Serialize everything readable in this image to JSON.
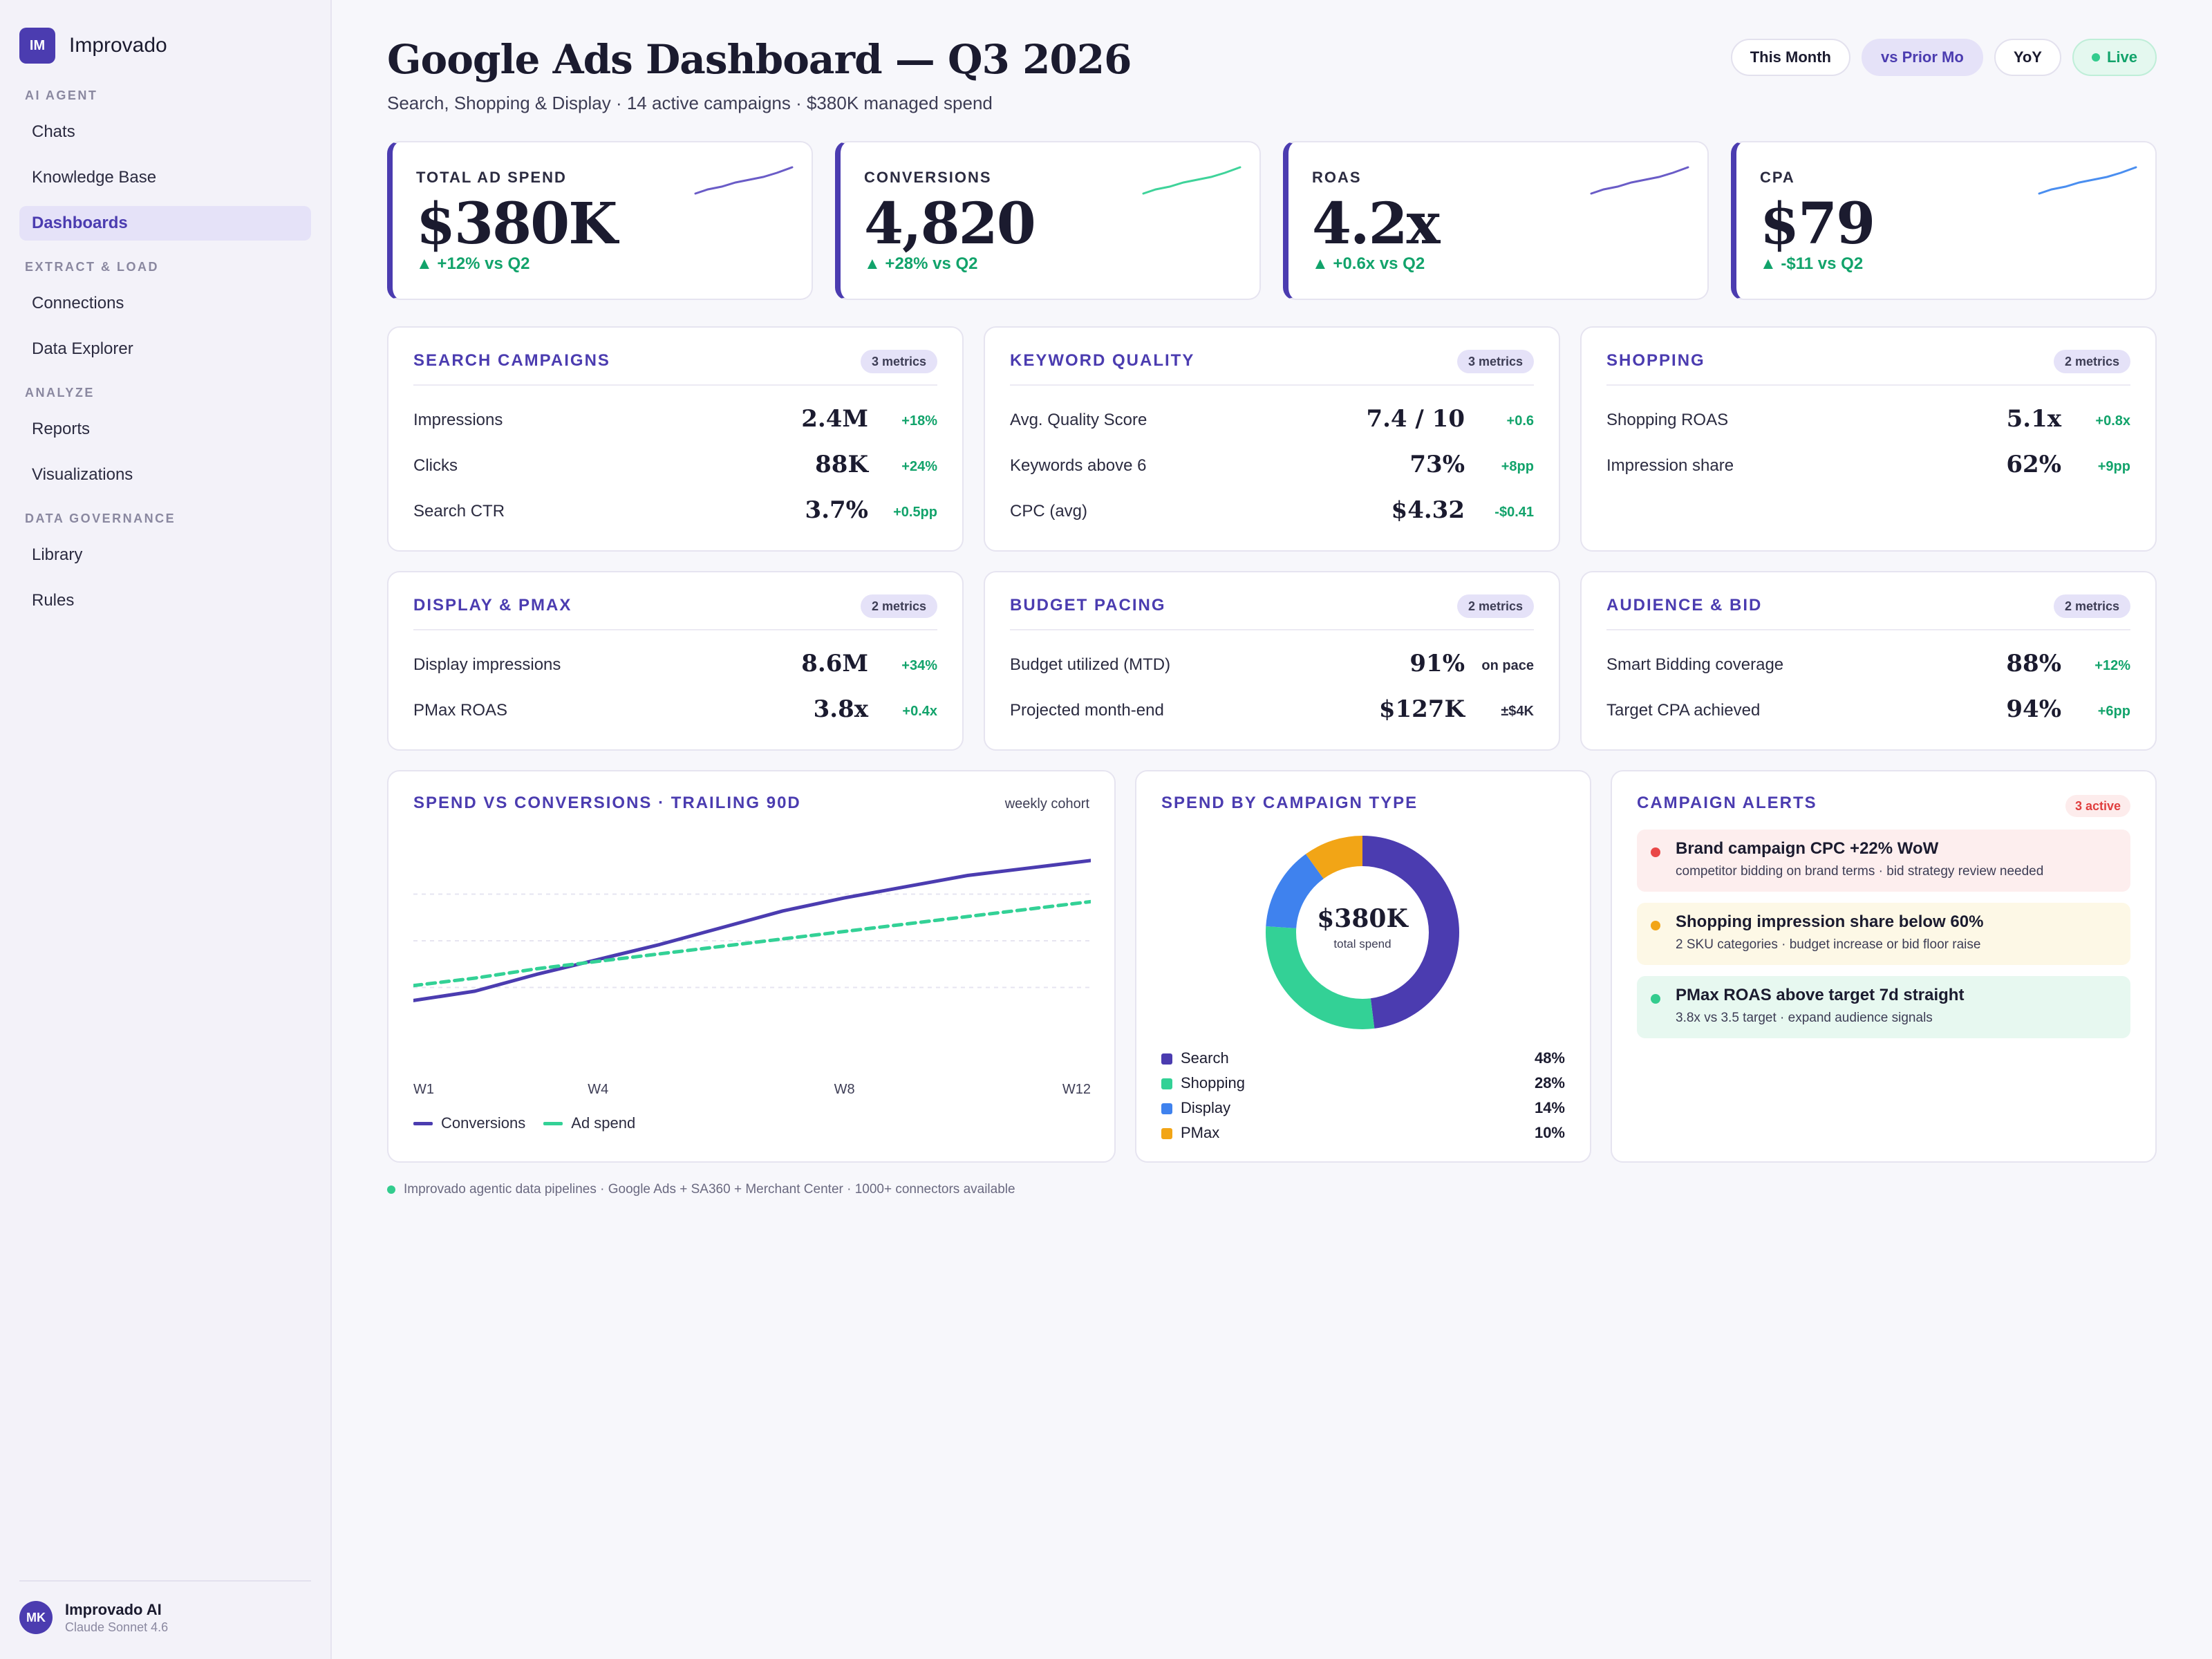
{
  "sidebar": {
    "brand": {
      "logo": "IM",
      "name": "Improvado"
    },
    "sections": [
      {
        "title": "AI AGENT",
        "items": [
          "Chats",
          "Knowledge Base",
          "Dashboards"
        ]
      },
      {
        "title": "EXTRACT & LOAD",
        "items": [
          "Connections",
          "Data Explorer"
        ]
      },
      {
        "title": "ANALYZE",
        "items": [
          "Reports",
          "Visualizations"
        ]
      },
      {
        "title": "DATA GOVERNANCE",
        "items": [
          "Library",
          "Rules"
        ]
      }
    ],
    "active_item": "Dashboards",
    "user": {
      "initials": "MK",
      "name": "Improvado AI",
      "model": "Claude Sonnet 4.6"
    }
  },
  "header": {
    "title": "Google Ads Dashboard — Q3 2026",
    "subtitle": "Search, Shopping & Display · 14 active campaigns · $380K managed spend",
    "chips": [
      "This Month",
      "vs Prior Mo",
      "YoY",
      "Live"
    ],
    "selected_chip": "vs Prior Mo"
  },
  "kpis": [
    {
      "label": "TOTAL AD SPEND",
      "value": "$380K",
      "delta": "▲ +12% vs Q2",
      "spark_color": "#6a5cc7"
    },
    {
      "label": "CONVERSIONS",
      "value": "4,820",
      "delta": "▲ +28% vs Q2",
      "spark_color": "#3fd39a"
    },
    {
      "label": "ROAS",
      "value": "4.2x",
      "delta": "▲ +0.6x vs Q2",
      "spark_color": "#6a5cc7"
    },
    {
      "label": "CPA",
      "value": "$79",
      "delta": "▲ -$11 vs Q2",
      "spark_color": "#4a8ef0"
    }
  ],
  "metric_cards": [
    {
      "title": "SEARCH CAMPAIGNS",
      "badge": "3 metrics",
      "rows": [
        {
          "label": "Impressions",
          "value": "2.4M",
          "delta": "+18%"
        },
        {
          "label": "Clicks",
          "value": "88K",
          "delta": "+24%"
        },
        {
          "label": "Search CTR",
          "value": "3.7%",
          "delta": "+0.5pp"
        }
      ]
    },
    {
      "title": "KEYWORD QUALITY",
      "badge": "3 metrics",
      "rows": [
        {
          "label": "Avg. Quality Score",
          "value": "7.4 / 10",
          "delta": "+0.6"
        },
        {
          "label": "Keywords above 6",
          "value": "73%",
          "delta": "+8pp"
        },
        {
          "label": "CPC (avg)",
          "value": "$4.32",
          "delta": "-$0.41"
        }
      ]
    },
    {
      "title": "SHOPPING",
      "badge": "2 metrics",
      "rows": [
        {
          "label": "Shopping ROAS",
          "value": "5.1x",
          "delta": "+0.8x"
        },
        {
          "label": "Impression share",
          "value": "62%",
          "delta": "+9pp"
        }
      ]
    },
    {
      "title": "DISPLAY & PMAX",
      "badge": "2 metrics",
      "rows": [
        {
          "label": "Display impressions",
          "value": "8.6M",
          "delta": "+34%"
        },
        {
          "label": "PMax ROAS",
          "value": "3.8x",
          "delta": "+0.4x"
        }
      ]
    },
    {
      "title": "BUDGET PACING",
      "badge": "2 metrics",
      "rows": [
        {
          "label": "Budget utilized (MTD)",
          "value": "91%",
          "delta": "on pace"
        },
        {
          "label": "Projected month-end",
          "value": "$127K",
          "delta": "±$4K"
        }
      ]
    },
    {
      "title": "AUDIENCE & BID",
      "badge": "2 metrics",
      "rows": [
        {
          "label": "Smart Bidding coverage",
          "value": "88%",
          "delta": "+12%"
        },
        {
          "label": "Target CPA achieved",
          "value": "94%",
          "delta": "+6pp"
        }
      ]
    }
  ],
  "line_panel": {
    "title": "SPEND VS CONVERSIONS · TRAILING 90D",
    "note": "weekly cohort"
  },
  "donut_panel": {
    "title": "SPEND BY CAMPAIGN TYPE",
    "center_value": "$380K",
    "center_sub": "total spend"
  },
  "alerts_panel": {
    "title": "CAMPAIGN ALERTS",
    "badge": "3 active",
    "alerts": [
      {
        "title": "Brand campaign CPC +22% WoW",
        "detail": "competitor bidding on brand terms · bid strategy review needed",
        "level": "critical",
        "bg": "#fdeeee",
        "dot": "#e94848"
      },
      {
        "title": "Shopping impression share below 60%",
        "detail": "2 SKU categories · budget increase or bid floor raise",
        "level": "warning",
        "bg": "#fdf8e6",
        "dot": "#f2a516"
      },
      {
        "title": "PMax ROAS above target 7d straight",
        "detail": "3.8x vs 3.5 target · expand audience signals",
        "level": "success",
        "bg": "#e7f8f0",
        "dot": "#33cc8e"
      }
    ]
  },
  "footer_note": "Improvado agentic data pipelines · Google Ads + SA360 + Merchant Center · 1000+ connectors available",
  "colors": {
    "accent": "#4b3cb0",
    "positive": "#12a36b",
    "teal": "#33d196",
    "blue": "#3f82ee",
    "amber": "#f2a516"
  },
  "chart_data": [
    {
      "type": "line",
      "title": "SPEND VS CONVERSIONS · TRAILING 90D",
      "x": [
        "W1",
        "W2",
        "W3",
        "W4",
        "W5",
        "W6",
        "W7",
        "W8",
        "W9",
        "W10",
        "W11",
        "W12"
      ],
      "x_tick_labels": [
        "W1",
        "W4",
        "W8",
        "W12"
      ],
      "series": [
        {
          "name": "Conversions",
          "color": "#4b3cb0",
          "style": "solid",
          "values": [
            18,
            23,
            32,
            40,
            48,
            57,
            66,
            73,
            79,
            85,
            89,
            93
          ]
        },
        {
          "name": "Ad spend",
          "color": "#33d196",
          "style": "dashed",
          "values": [
            26,
            30,
            35,
            39,
            43,
            47,
            51,
            55,
            59,
            63,
            67,
            71
          ]
        }
      ],
      "ylim": [
        0,
        100
      ],
      "grid": true,
      "legend": "bottom-left"
    },
    {
      "type": "pie",
      "title": "SPEND BY CAMPAIGN TYPE",
      "categories": [
        "Search",
        "Shopping",
        "Display",
        "PMax"
      ],
      "values": [
        48,
        28,
        14,
        10
      ],
      "colors": [
        "#4b3cb0",
        "#33d196",
        "#3f82ee",
        "#f2a516"
      ],
      "legend": "bottom"
    }
  ]
}
